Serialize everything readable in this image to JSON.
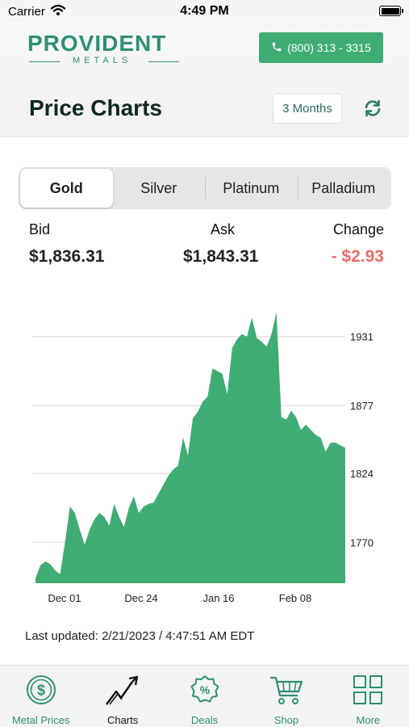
{
  "status_bar": {
    "carrier": "Carrier",
    "time": "4:49 PM"
  },
  "header": {
    "logo_main": "PROVIDENT",
    "logo_sub": "METALS",
    "phone_label": "(800) 313 - 3315",
    "title": "Price Charts",
    "range_label": "3 Months"
  },
  "metals": {
    "tabs": [
      {
        "label": "Gold",
        "active": true
      },
      {
        "label": "Silver",
        "active": false
      },
      {
        "label": "Platinum",
        "active": false
      },
      {
        "label": "Palladium",
        "active": false
      }
    ]
  },
  "quote": {
    "bid_label": "Bid",
    "bid_value": "$1,836.31",
    "ask_label": "Ask",
    "ask_value": "$1,843.31",
    "change_label": "Change",
    "change_value": "- $2.93"
  },
  "chart_data": {
    "type": "area",
    "color": "#3fad73",
    "x_ticks": [
      "Dec 01",
      "Dec 24",
      "Jan 16",
      "Feb 08"
    ],
    "y_ticks": [
      1931,
      1877,
      1824,
      1770
    ],
    "ylim": [
      1738,
      1970
    ],
    "values": [
      1742,
      1752,
      1755,
      1753,
      1748,
      1745,
      1770,
      1798,
      1793,
      1780,
      1768,
      1780,
      1788,
      1793,
      1790,
      1783,
      1800,
      1790,
      1782,
      1797,
      1806,
      1793,
      1798,
      1800,
      1801,
      1808,
      1815,
      1822,
      1827,
      1830,
      1852,
      1838,
      1867,
      1872,
      1880,
      1884,
      1906,
      1904,
      1902,
      1886,
      1922,
      1929,
      1933,
      1931,
      1946,
      1930,
      1927,
      1923,
      1933,
      1950,
      1868,
      1866,
      1873,
      1868,
      1858,
      1862,
      1858,
      1854,
      1852,
      1841,
      1848,
      1848,
      1846,
      1844
    ]
  },
  "footer": {
    "updated": "Last updated: 2/21/2023 / 4:47:51 AM EDT"
  },
  "tabbar": {
    "items": [
      {
        "label": "Metal Prices",
        "icon": "coin-icon"
      },
      {
        "label": "Charts",
        "icon": "chart-icon"
      },
      {
        "label": "Deals",
        "icon": "percent-badge-icon"
      },
      {
        "label": "Shop",
        "icon": "cart-icon"
      },
      {
        "label": "More",
        "icon": "grid-icon"
      }
    ]
  }
}
